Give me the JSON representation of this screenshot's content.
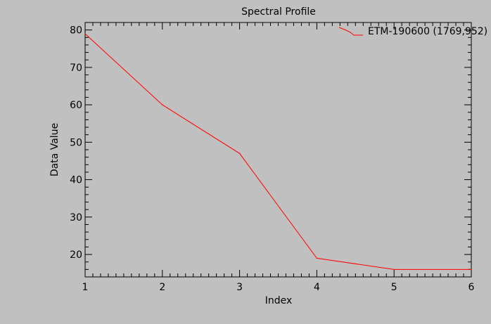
{
  "chart_data": {
    "type": "line",
    "title": "Spectral Profile",
    "xlabel": "Index",
    "ylabel": "Data Value",
    "xlim": [
      1,
      6
    ],
    "ylim": [
      14,
      82
    ],
    "xticks": [
      1,
      2,
      3,
      4,
      5,
      6
    ],
    "yticks": [
      20,
      30,
      40,
      50,
      60,
      70,
      80
    ],
    "grid": false,
    "legend_position": "top-right",
    "background_color": "#c0c0c0",
    "axis_color": "#000000",
    "series": [
      {
        "name": "ETM-190600 (1769,952)",
        "color": "#ff0000",
        "x": [
          1,
          2,
          3,
          4,
          5,
          6
        ],
        "y": [
          79,
          60,
          47,
          19,
          16,
          16
        ]
      }
    ]
  }
}
